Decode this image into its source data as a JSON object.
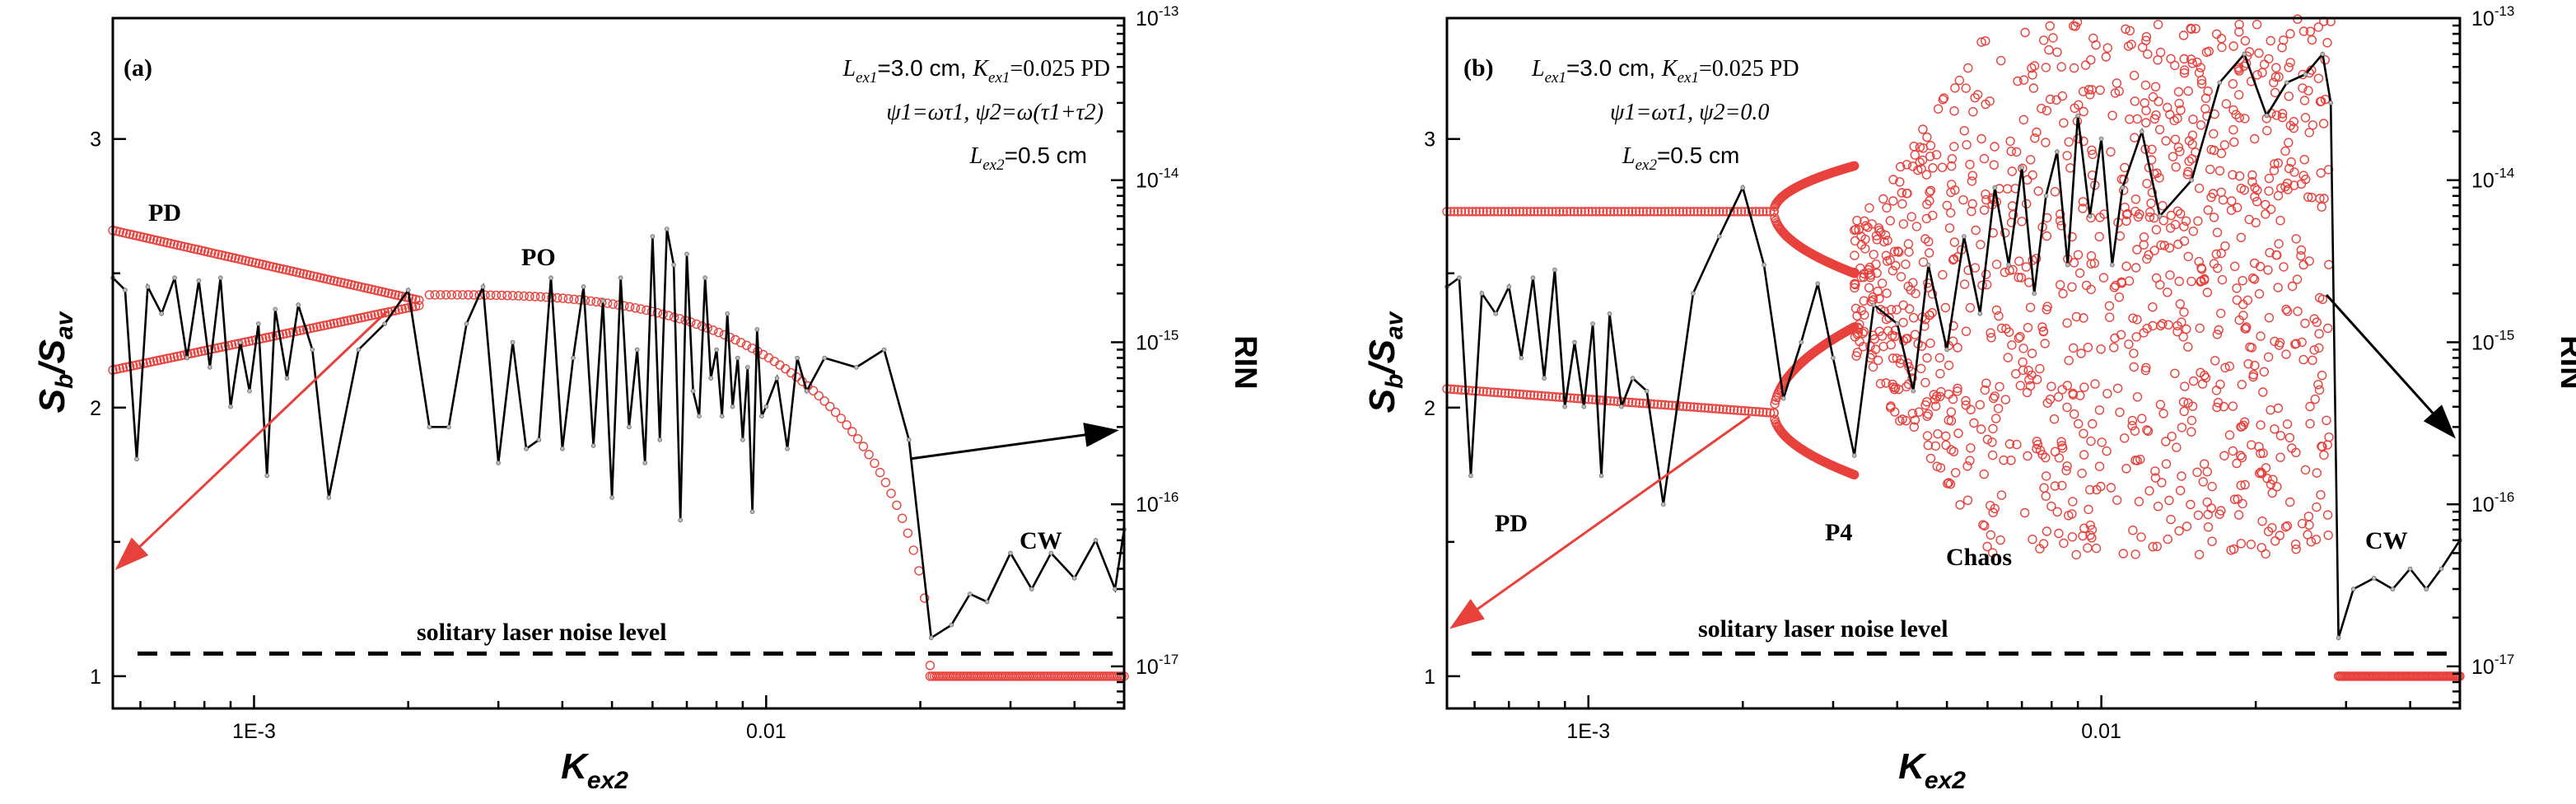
{
  "chart_data": [
    {
      "type": "scatter",
      "panel_label": "(a)",
      "xlabel": {
        "main": "K",
        "sub": "ex2"
      },
      "ylabel": {
        "main": "S",
        "sub": "b",
        "sep": "/",
        "main2": "S",
        "sub2": "av"
      },
      "y2label": "RIN",
      "xscale": "log",
      "xlim": [
        0.00053,
        0.05
      ],
      "ylim": [
        0.88,
        3.45
      ],
      "y2scale": "log",
      "y2lim": [
        5.5e-18,
        1e-13
      ],
      "x_tick_labels": [
        "1E-3",
        "0.01"
      ],
      "y_tick_labels": [
        "1",
        "2",
        "3"
      ],
      "y2_tick_labels": [
        {
          "base": "10",
          "exp": "-17"
        },
        {
          "base": "10",
          "exp": "-16"
        },
        {
          "base": "10",
          "exp": "-15"
        },
        {
          "base": "10",
          "exp": "-14"
        },
        {
          "base": "10",
          "exp": "-13"
        }
      ],
      "params": {
        "line1": {
          "L": "L",
          "Lsub": "ex1",
          "Lval": "=3.0 cm, ",
          "K": "K",
          "Ksub": "ex1",
          "Kval": "=0.025 PD"
        },
        "line2": "ψ1=ωτ1, ψ2=ω(τ1+τ2)",
        "line3": {
          "L": "L",
          "Lsub": "ex2",
          "Lval": "=0.5 cm"
        }
      },
      "annotations": [
        "PD",
        "PO",
        "CW",
        "solitary laser noise level"
      ],
      "noise_level_rin": 1.2e-17,
      "series": [
        {
          "name": "bifurcation upper branch",
          "color": "#e8413c",
          "segments": [
            {
              "x_range": [
                0.00053,
                0.0021
              ],
              "y": [
                2.66,
                2.4
              ],
              "shape": "linear"
            },
            {
              "x_range": [
                0.0022,
                0.0209
              ],
              "y": [
                2.42,
                1.04
              ],
              "shape": "collapse"
            },
            {
              "x_range": [
                0.0209,
                0.05
              ],
              "y": [
                1.0,
                1.0
              ],
              "shape": "linear"
            }
          ]
        },
        {
          "name": "bifurcation lower branch",
          "color": "#e8413c",
          "segments": [
            {
              "x_range": [
                0.00053,
                0.0021
              ],
              "y": [
                2.14,
                2.38
              ],
              "shape": "linear"
            }
          ]
        },
        {
          "name": "RIN",
          "color": "#000000",
          "x": [
            0.00053,
            0.00056,
            0.00059,
            0.00062,
            0.00066,
            0.0007,
            0.00074,
            0.00078,
            0.00082,
            0.00086,
            0.0009,
            0.00094,
            0.00098,
            0.00102,
            0.00106,
            0.0011,
            0.00116,
            0.00122,
            0.0013,
            0.0014,
            0.0016,
            0.0018,
            0.002,
            0.0022,
            0.0024,
            0.0026,
            0.0028,
            0.003,
            0.0032,
            0.0034,
            0.0036,
            0.0038,
            0.004,
            0.0042,
            0.0044,
            0.0046,
            0.0048,
            0.005,
            0.0052,
            0.0054,
            0.0056,
            0.0058,
            0.006,
            0.0062,
            0.0064,
            0.0066,
            0.0068,
            0.007,
            0.0072,
            0.0074,
            0.0076,
            0.0078,
            0.008,
            0.0082,
            0.0084,
            0.0086,
            0.0088,
            0.009,
            0.0092,
            0.0094,
            0.0096,
            0.0098,
            0.01,
            0.0105,
            0.011,
            0.0115,
            0.012,
            0.013,
            0.015,
            0.017,
            0.019,
            0.021,
            0.023,
            0.025,
            0.027,
            0.03,
            0.033,
            0.036,
            0.04,
            0.044,
            0.048,
            0.05
          ],
          "rin": [
            2.5e-15,
            2.1e-15,
            1.9e-16,
            2.2e-15,
            1.5e-15,
            2.5e-15,
            8e-16,
            2.4e-15,
            7e-16,
            2.5e-15,
            4e-16,
            1e-15,
            5e-16,
            1.3e-15,
            1.5e-16,
            1.6e-15,
            6e-16,
            1.7e-15,
            9e-16,
            1.1e-16,
            9e-16,
            1.3e-15,
            2.1e-15,
            3e-16,
            3e-16,
            1.3e-15,
            2.2e-15,
            1.8e-16,
            1e-15,
            2.2e-16,
            2.5e-16,
            2.5e-15,
            2.2e-16,
            8e-16,
            2.2e-15,
            2.3e-16,
            1.8e-15,
            1.1e-16,
            2.5e-15,
            3e-16,
            9e-16,
            1.8e-16,
            4.5e-15,
            2.5e-16,
            5e-15,
            3e-15,
            8e-17,
            3.5e-15,
            5e-16,
            3.5e-16,
            2.5e-15,
            6e-16,
            9e-16,
            3.5e-16,
            1.5e-15,
            4e-16,
            8e-16,
            2.5e-16,
            7e-16,
            9e-17,
            1.2e-15,
            3.5e-16,
            4e-16,
            6e-16,
            2.2e-16,
            8e-16,
            5e-16,
            8e-16,
            7e-16,
            9e-16,
            2.5e-16,
            1.5e-17,
            1.8e-17,
            2.8e-17,
            2.5e-17,
            5e-17,
            3e-17,
            5e-17,
            3.5e-17,
            6e-17,
            3e-17,
            7e-17
          ]
        }
      ]
    },
    {
      "type": "scatter",
      "panel_label": "(b)",
      "xlabel": {
        "main": "K",
        "sub": "ex2"
      },
      "ylabel": {
        "main": "S",
        "sub": "b",
        "sep": "/",
        "main2": "S",
        "sub2": "av"
      },
      "y2label": "RIN",
      "xscale": "log",
      "xlim": [
        0.00053,
        0.05
      ],
      "ylim": [
        0.88,
        3.45
      ],
      "y2scale": "log",
      "y2lim": [
        5.5e-18,
        1e-13
      ],
      "x_tick_labels": [
        "1E-3",
        "0.01"
      ],
      "y_tick_labels": [
        "1",
        "2",
        "3"
      ],
      "y2_tick_labels": [
        {
          "base": "10",
          "exp": "-17"
        },
        {
          "base": "10",
          "exp": "-16"
        },
        {
          "base": "10",
          "exp": "-15"
        },
        {
          "base": "10",
          "exp": "-14"
        },
        {
          "base": "10",
          "exp": "-13"
        }
      ],
      "params": {
        "line1": {
          "L": "L",
          "Lsub": "ex1",
          "Lval": "=3.0 cm, ",
          "K": "K",
          "Ksub": "ex1",
          "Kval": "=0.025 PD"
        },
        "line2": "ψ1=ωτ1, ψ2=0.0",
        "line3": {
          "L": "L",
          "Lsub": "ex2",
          "Lval": "=0.5 cm"
        }
      },
      "annotations": [
        "PD",
        "P4",
        "Chaos",
        "CW",
        "solitary laser noise level"
      ],
      "noise_level_rin": 1.2e-17,
      "series": [
        {
          "name": "PD upper branch",
          "color": "#e8413c",
          "segments": [
            {
              "x_range": [
                0.00053,
                0.0023
              ],
              "y": [
                2.73,
                2.73
              ],
              "shape": "linear"
            }
          ]
        },
        {
          "name": "PD lower branch",
          "color": "#e8413c",
          "segments": [
            {
              "x_range": [
                0.00053,
                0.0023
              ],
              "y": [
                2.07,
                1.98
              ],
              "shape": "linear"
            }
          ]
        },
        {
          "name": "P4 branches",
          "color": "#e8413c",
          "segments": [
            {
              "x_range": [
                0.0023,
                0.0033
              ],
              "y": [
                2.73,
                2.9
              ],
              "shape": "fork"
            },
            {
              "x_range": [
                0.0023,
                0.0033
              ],
              "y": [
                2.73,
                2.5
              ],
              "shape": "fork"
            },
            {
              "x_range": [
                0.0023,
                0.0033
              ],
              "y": [
                1.98,
                2.3
              ],
              "shape": "fork"
            },
            {
              "x_range": [
                0.0023,
                0.0033
              ],
              "y": [
                1.98,
                1.75
              ],
              "shape": "fork"
            }
          ]
        },
        {
          "name": "chaos cloud",
          "color": "#e8413c",
          "cloud": {
            "x_range": [
              0.0033,
              0.028
            ],
            "y_range": [
              1.45,
              3.45
            ],
            "count": 1100
          }
        },
        {
          "name": "CW level",
          "color": "#e8413c",
          "segments": [
            {
              "x_range": [
                0.029,
                0.05
              ],
              "y": [
                1.0,
                1.0
              ],
              "shape": "linear"
            }
          ]
        },
        {
          "name": "RIN",
          "color": "#000000",
          "x": [
            0.00053,
            0.00056,
            0.00059,
            0.00062,
            0.00066,
            0.0007,
            0.00074,
            0.00078,
            0.00082,
            0.00086,
            0.0009,
            0.00094,
            0.00098,
            0.00102,
            0.00106,
            0.0011,
            0.00116,
            0.00122,
            0.0013,
            0.0014,
            0.0016,
            0.0018,
            0.002,
            0.0022,
            0.0024,
            0.0026,
            0.0028,
            0.003,
            0.0033,
            0.0036,
            0.004,
            0.0043,
            0.0046,
            0.005,
            0.0054,
            0.0058,
            0.0062,
            0.0066,
            0.007,
            0.0074,
            0.0078,
            0.0082,
            0.0086,
            0.009,
            0.0095,
            0.01,
            0.0105,
            0.011,
            0.012,
            0.013,
            0.015,
            0.017,
            0.019,
            0.021,
            0.023,
            0.025,
            0.027,
            0.028,
            0.029,
            0.031,
            0.034,
            0.037,
            0.04,
            0.043,
            0.046,
            0.05
          ],
          "rin": [
            2.2e-15,
            2.5e-15,
            1.5e-16,
            2e-15,
            1.5e-15,
            2.2e-15,
            8e-16,
            2.5e-15,
            6e-16,
            2.8e-15,
            4e-16,
            1e-15,
            4e-16,
            1.3e-15,
            1.5e-16,
            1.5e-15,
            4e-16,
            6e-16,
            5e-16,
            1e-16,
            2e-15,
            4.5e-15,
            9e-15,
            3e-15,
            4.5e-16,
            1e-15,
            2.3e-15,
            8e-16,
            2e-16,
            1.7e-15,
            1.3e-15,
            5e-16,
            3e-15,
            9e-16,
            4.5e-15,
            1.5e-15,
            9e-15,
            3e-15,
            1.2e-14,
            2e-15,
            8e-15,
            1.5e-14,
            3e-15,
            2.5e-14,
            6e-15,
            1.8e-14,
            3e-15,
            9e-15,
            2e-14,
            6e-15,
            1e-14,
            4e-14,
            6e-14,
            2.5e-14,
            4e-14,
            4.5e-14,
            6e-14,
            3e-14,
            1.5e-17,
            3e-17,
            3.5e-17,
            3e-17,
            4e-17,
            3e-17,
            4e-17,
            6e-17
          ]
        }
      ]
    }
  ]
}
